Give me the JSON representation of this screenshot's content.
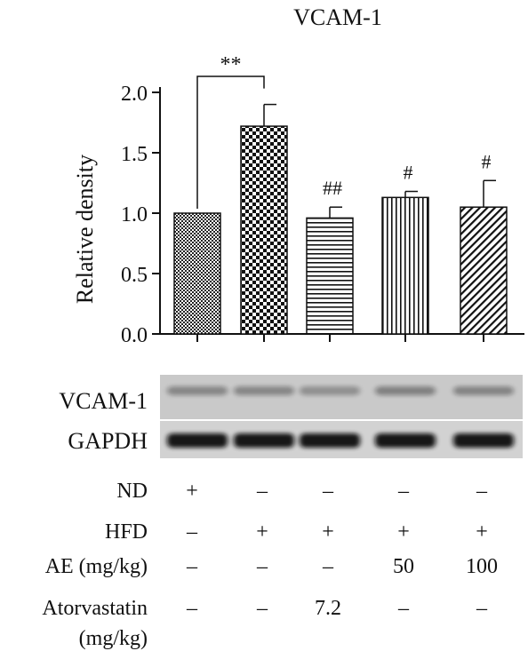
{
  "chart_data": {
    "type": "bar",
    "title": "VCAM-1",
    "ylabel": "Relative density",
    "ylim": [
      0,
      2.0
    ],
    "yticks": [
      "0.0",
      "0.5",
      "1.0",
      "1.5",
      "2.0"
    ],
    "bars": [
      {
        "value": 1.0,
        "error": 0.0,
        "pattern": "fine-checker",
        "annotation": ""
      },
      {
        "value": 1.72,
        "error": 0.18,
        "pattern": "coarse-checker",
        "annotation": ""
      },
      {
        "value": 0.96,
        "error": 0.09,
        "pattern": "horizontal-lines",
        "annotation": "##"
      },
      {
        "value": 1.13,
        "error": 0.05,
        "pattern": "vertical-lines",
        "annotation": "#"
      },
      {
        "value": 1.05,
        "error": 0.22,
        "pattern": "diagonal-lines",
        "annotation": "#"
      }
    ],
    "significance_bracket": {
      "from": 0,
      "to": 1,
      "label": "**"
    },
    "grid": false,
    "legend": "none"
  },
  "blot": {
    "rows": [
      {
        "label": "VCAM-1",
        "band_intensity": [
          0.35,
          0.35,
          0.3,
          0.38,
          0.36
        ]
      },
      {
        "label": "GAPDH",
        "band_intensity": [
          0.95,
          0.95,
          0.95,
          0.95,
          0.95
        ]
      }
    ]
  },
  "conditions": [
    {
      "label": "ND",
      "values": [
        "+",
        "–",
        "–",
        "–",
        "–"
      ]
    },
    {
      "label": "HFD",
      "values": [
        "–",
        "+",
        "+",
        "+",
        "+"
      ]
    },
    {
      "label": "AE (mg/kg)",
      "values": [
        "–",
        "–",
        "–",
        "50",
        "100"
      ]
    },
    {
      "label": "Atorvastatin",
      "label2": "(mg/kg)",
      "values": [
        "–",
        "–",
        "7.2",
        "–",
        "–"
      ]
    }
  ]
}
